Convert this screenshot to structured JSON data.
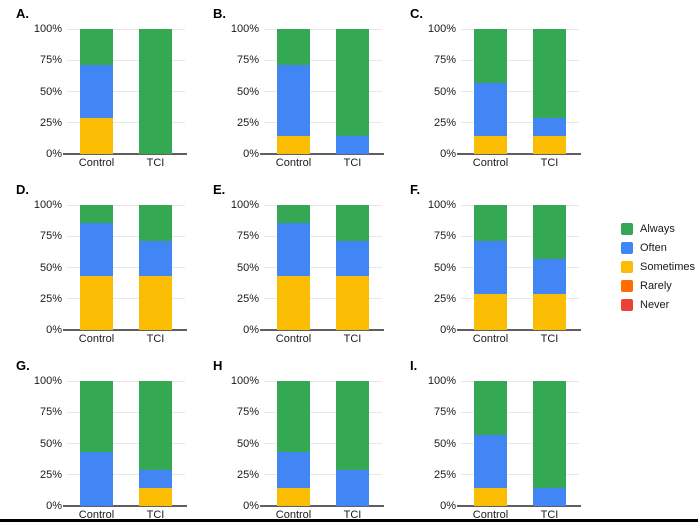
{
  "figure": {
    "yticks": [
      {
        "label": "0%",
        "value": 0
      },
      {
        "label": "25%",
        "value": 25
      },
      {
        "label": "50%",
        "value": 50
      },
      {
        "label": "75%",
        "value": 75
      },
      {
        "label": "100%",
        "value": 100
      }
    ],
    "x_categories": [
      "Control",
      "TCI"
    ],
    "legend": [
      {
        "label": "Always",
        "color": "#34A853"
      },
      {
        "label": "Often",
        "color": "#4285F4"
      },
      {
        "label": "Sometimes",
        "color": "#FBBC04"
      },
      {
        "label": "Rarely",
        "color": "#FF6D01"
      },
      {
        "label": "Never",
        "color": "#EA4335"
      }
    ]
  },
  "chart_data": [
    {
      "type": "bar",
      "stacked": true,
      "stack_order": "bottom_to_top",
      "panel": "A.",
      "categories": [
        "Control",
        "TCI"
      ],
      "ylim": [
        0,
        100
      ],
      "series": [
        {
          "name": "Never",
          "values": [
            0,
            0
          ]
        },
        {
          "name": "Rarely",
          "values": [
            0,
            0
          ]
        },
        {
          "name": "Sometimes",
          "values": [
            28.6,
            0
          ]
        },
        {
          "name": "Often",
          "values": [
            42.9,
            0
          ]
        },
        {
          "name": "Always",
          "values": [
            28.6,
            100
          ]
        }
      ]
    },
    {
      "type": "bar",
      "stacked": true,
      "stack_order": "bottom_to_top",
      "panel": "B.",
      "categories": [
        "Control",
        "TCI"
      ],
      "ylim": [
        0,
        100
      ],
      "series": [
        {
          "name": "Never",
          "values": [
            0,
            0
          ]
        },
        {
          "name": "Rarely",
          "values": [
            0,
            0
          ]
        },
        {
          "name": "Sometimes",
          "values": [
            14.3,
            0
          ]
        },
        {
          "name": "Often",
          "values": [
            57.1,
            14.3
          ]
        },
        {
          "name": "Always",
          "values": [
            28.6,
            85.7
          ]
        }
      ]
    },
    {
      "type": "bar",
      "stacked": true,
      "stack_order": "bottom_to_top",
      "panel": "C.",
      "categories": [
        "Control",
        "TCI"
      ],
      "ylim": [
        0,
        100
      ],
      "series": [
        {
          "name": "Never",
          "values": [
            0,
            0
          ]
        },
        {
          "name": "Rarely",
          "values": [
            0,
            0
          ]
        },
        {
          "name": "Sometimes",
          "values": [
            14.3,
            14.3
          ]
        },
        {
          "name": "Often",
          "values": [
            42.9,
            14.3
          ]
        },
        {
          "name": "Always",
          "values": [
            42.9,
            71.4
          ]
        }
      ]
    },
    {
      "type": "bar",
      "stacked": true,
      "stack_order": "bottom_to_top",
      "panel": "D.",
      "categories": [
        "Control",
        "TCI"
      ],
      "ylim": [
        0,
        100
      ],
      "series": [
        {
          "name": "Never",
          "values": [
            0,
            0
          ]
        },
        {
          "name": "Rarely",
          "values": [
            0,
            0
          ]
        },
        {
          "name": "Sometimes",
          "values": [
            42.9,
            42.9
          ]
        },
        {
          "name": "Often",
          "values": [
            42.9,
            28.6
          ]
        },
        {
          "name": "Always",
          "values": [
            14.3,
            28.6
          ]
        }
      ]
    },
    {
      "type": "bar",
      "stacked": true,
      "stack_order": "bottom_to_top",
      "panel": "E.",
      "categories": [
        "Control",
        "TCI"
      ],
      "ylim": [
        0,
        100
      ],
      "series": [
        {
          "name": "Never",
          "values": [
            0,
            0
          ]
        },
        {
          "name": "Rarely",
          "values": [
            0,
            0
          ]
        },
        {
          "name": "Sometimes",
          "values": [
            42.9,
            42.9
          ]
        },
        {
          "name": "Often",
          "values": [
            42.9,
            28.6
          ]
        },
        {
          "name": "Always",
          "values": [
            14.3,
            28.6
          ]
        }
      ]
    },
    {
      "type": "bar",
      "stacked": true,
      "stack_order": "bottom_to_top",
      "panel": "F.",
      "categories": [
        "Control",
        "TCI"
      ],
      "ylim": [
        0,
        100
      ],
      "series": [
        {
          "name": "Never",
          "values": [
            0,
            0
          ]
        },
        {
          "name": "Rarely",
          "values": [
            0,
            0
          ]
        },
        {
          "name": "Sometimes",
          "values": [
            28.6,
            28.6
          ]
        },
        {
          "name": "Often",
          "values": [
            42.9,
            28.6
          ]
        },
        {
          "name": "Always",
          "values": [
            28.6,
            42.9
          ]
        }
      ]
    },
    {
      "type": "bar",
      "stacked": true,
      "stack_order": "bottom_to_top",
      "panel": "G.",
      "categories": [
        "Control",
        "TCI"
      ],
      "ylim": [
        0,
        100
      ],
      "series": [
        {
          "name": "Never",
          "values": [
            0,
            0
          ]
        },
        {
          "name": "Rarely",
          "values": [
            0,
            0
          ]
        },
        {
          "name": "Sometimes",
          "values": [
            0,
            14.3
          ]
        },
        {
          "name": "Often",
          "values": [
            42.9,
            14.3
          ]
        },
        {
          "name": "Always",
          "values": [
            57.1,
            71.4
          ]
        }
      ]
    },
    {
      "type": "bar",
      "stacked": true,
      "stack_order": "bottom_to_top",
      "panel": "H",
      "categories": [
        "Control",
        "TCI"
      ],
      "ylim": [
        0,
        100
      ],
      "series": [
        {
          "name": "Never",
          "values": [
            0,
            0
          ]
        },
        {
          "name": "Rarely",
          "values": [
            0,
            0
          ]
        },
        {
          "name": "Sometimes",
          "values": [
            14.3,
            0
          ]
        },
        {
          "name": "Often",
          "values": [
            28.6,
            28.6
          ]
        },
        {
          "name": "Always",
          "values": [
            57.1,
            71.4
          ]
        }
      ]
    },
    {
      "type": "bar",
      "stacked": true,
      "stack_order": "bottom_to_top",
      "panel": "I.",
      "categories": [
        "Control",
        "TCI"
      ],
      "ylim": [
        0,
        100
      ],
      "series": [
        {
          "name": "Never",
          "values": [
            0,
            0
          ]
        },
        {
          "name": "Rarely",
          "values": [
            0,
            0
          ]
        },
        {
          "name": "Sometimes",
          "values": [
            14.3,
            0
          ]
        },
        {
          "name": "Often",
          "values": [
            42.9,
            14.3
          ]
        },
        {
          "name": "Always",
          "values": [
            42.9,
            85.7
          ]
        }
      ]
    }
  ]
}
